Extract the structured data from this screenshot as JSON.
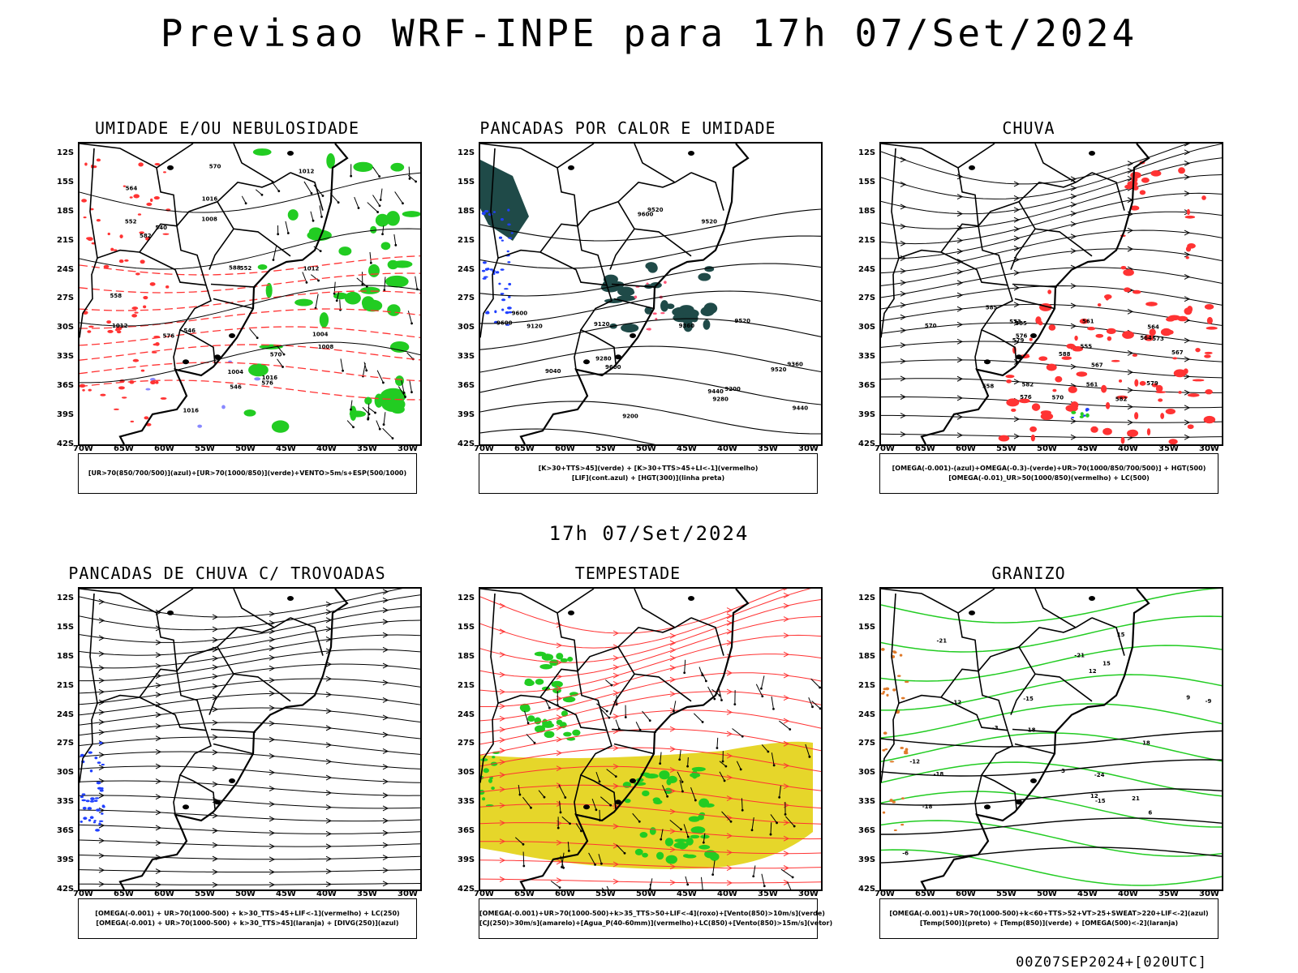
{
  "title": "Previsao WRF-INPE  para 17h 07/Set/2024",
  "mid_date": "17h 07/Set/2024",
  "footer": "00Z07SEP2024+[020UTC]",
  "y_ticks": [
    "12S",
    "15S",
    "18S",
    "21S",
    "24S",
    "27S",
    "30S",
    "33S",
    "36S",
    "39S",
    "42S"
  ],
  "x_ticks": [
    "70W",
    "65W",
    "60W",
    "55W",
    "50W",
    "45W",
    "40W",
    "35W",
    "30W"
  ],
  "colors": {
    "blue": "#2040ff",
    "green": "#22cc22",
    "red": "#ff3333",
    "yellow": "#e6d62a",
    "darkteal": "#1f4a48",
    "orange": "#e07a2a"
  },
  "panels": [
    {
      "id": "umidade",
      "title": "UMIDADE E/OU NEBULOSIDADE",
      "legend": [
        "[UR>70(850/700/500)](azul)+[UR>70(1000/850)](verde)+VENTO>5m/s+ESP(500/1000)"
      ],
      "contour_labels": [
        "1004",
        "1008",
        "1012",
        "1016",
        "1012",
        "1008",
        "1004",
        "1016",
        "576",
        "570",
        "564",
        "558",
        "552",
        "546",
        "540",
        "570",
        "576",
        "582",
        "588",
        "552",
        "546",
        "1012",
        "1016"
      ]
    },
    {
      "id": "pancadas-calor",
      "title": "PANCADAS POR CALOR E UMIDADE",
      "legend": [
        "[K>30+TTS>45](verde) + [K>30+TTS>45+LI<-1](vermelho)",
        "[LIF](cont.azul) + [HGT(300)](linha preta)"
      ],
      "contour_labels": [
        "9520",
        "9600",
        "9600",
        "9600",
        "9520",
        "9440",
        "9520",
        "9360",
        "9440",
        "9280",
        "9360",
        "9200",
        "9280",
        "9120",
        "9200",
        "9040",
        "9120",
        "9600",
        "9520"
      ]
    },
    {
      "id": "chuva",
      "title": "CHUVA",
      "legend": [
        "[OMEGA(-0.001)-(azul)+OMEGA(-0.3)-(verde)+UR>70(1000/850/700/500)] + HGT(500)",
        "[OMEGA(-0.01)_UR>50(1000/850)(vermelho) + LC(500)"
      ],
      "contour_labels": [
        "588",
        "585",
        "582",
        "579",
        "576",
        "573",
        "570",
        "567",
        "564",
        "561",
        "558",
        "555",
        "576",
        "573",
        "570",
        "567",
        "564",
        "561",
        "585",
        "582",
        "579"
      ]
    },
    {
      "id": "trovoadas",
      "title": "PANCADAS DE CHUVA C/ TROVOADAS",
      "legend": [
        "[OMEGA(-0.001) + UR>70(1000-500) + k>30_TTS>45+LIF<-1](vermelho) + LC(250)",
        "[OMEGA(-0.001) + UR>70(1000-500) + k>30_TTS>45](laranja) + [DIVG(250)](azul)"
      ],
      "contour_labels": []
    },
    {
      "id": "tempestade",
      "title": "TEMPESTADE",
      "legend": [
        "[OMEGA(-0.001)+UR>70(1000-500)+k>35_TTS>50+LIF<-4](roxo)+[Vento(850)>10m/s](verde)",
        "[CJ(250)>30m/s](amarelo)+[Agua_P(40-60mm)](vermelho)+LC(850)+[Vento(850)>15m/s](vetor)"
      ],
      "contour_labels": []
    },
    {
      "id": "granizo",
      "title": "GRANIZO",
      "legend": [
        "[OMEGA(-0.001)+UR>70(1000-500)+k<60+TTS>52+VT>25+SWEAT>220+LIF<-2](azul)",
        "[Temp(500)](preto) + [Temp(850)](verde) + [OMEGA(500)<-2](laranja)"
      ],
      "contour_labels": [
        "-3",
        "-6",
        "-9",
        "-12",
        "-15",
        "-18",
        "-21",
        "-12",
        "-15",
        "-18",
        "-21",
        "-24",
        "3",
        "6",
        "9",
        "12",
        "15",
        "18",
        "21",
        "18",
        "15",
        "12"
      ]
    }
  ]
}
